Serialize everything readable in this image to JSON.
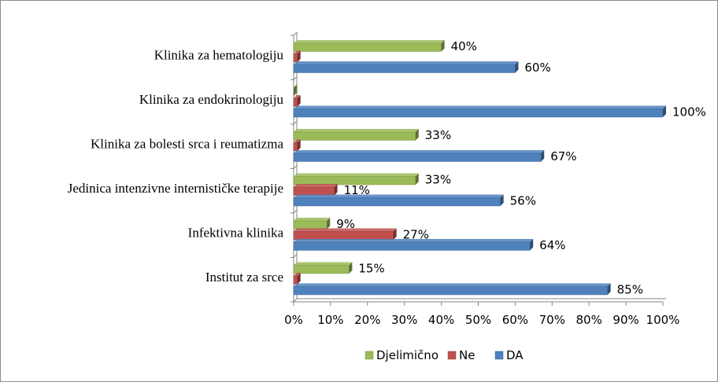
{
  "chart_data": {
    "type": "bar",
    "orientation": "horizontal",
    "categories": [
      "Klinika za hematologiju",
      "Klinika za endokrinologiju",
      "Klinika za bolesti srca i reumatizma",
      "Jedinica intenzivne internističke terapije",
      "Infektivna klinika",
      "Institut za srce"
    ],
    "series": [
      {
        "name": "Djelimično",
        "color": "#9bbb59",
        "values": [
          40,
          0,
          33,
          33,
          9,
          15
        ],
        "labels": [
          "40%",
          "",
          "33%",
          "33%",
          "9%",
          "15%"
        ]
      },
      {
        "name": "Ne",
        "color": "#c0504d",
        "values": [
          1,
          1,
          1,
          11,
          27,
          1
        ],
        "labels": [
          "",
          "",
          "",
          "11%",
          "27%",
          ""
        ]
      },
      {
        "name": "DA",
        "color": "#4f81bd",
        "values": [
          60,
          100,
          67,
          56,
          64,
          85
        ],
        "labels": [
          "60%",
          "100%",
          "67%",
          "56%",
          "64%",
          "85%"
        ]
      }
    ],
    "xlim": [
      0,
      100
    ],
    "x_ticks": [
      "0%",
      "10%",
      "20%",
      "30%",
      "40%",
      "50%",
      "60%",
      "70%",
      "80%",
      "90%",
      "100%"
    ],
    "grid": false,
    "legend_position": "bottom",
    "title": "",
    "xlabel": "",
    "ylabel": ""
  }
}
